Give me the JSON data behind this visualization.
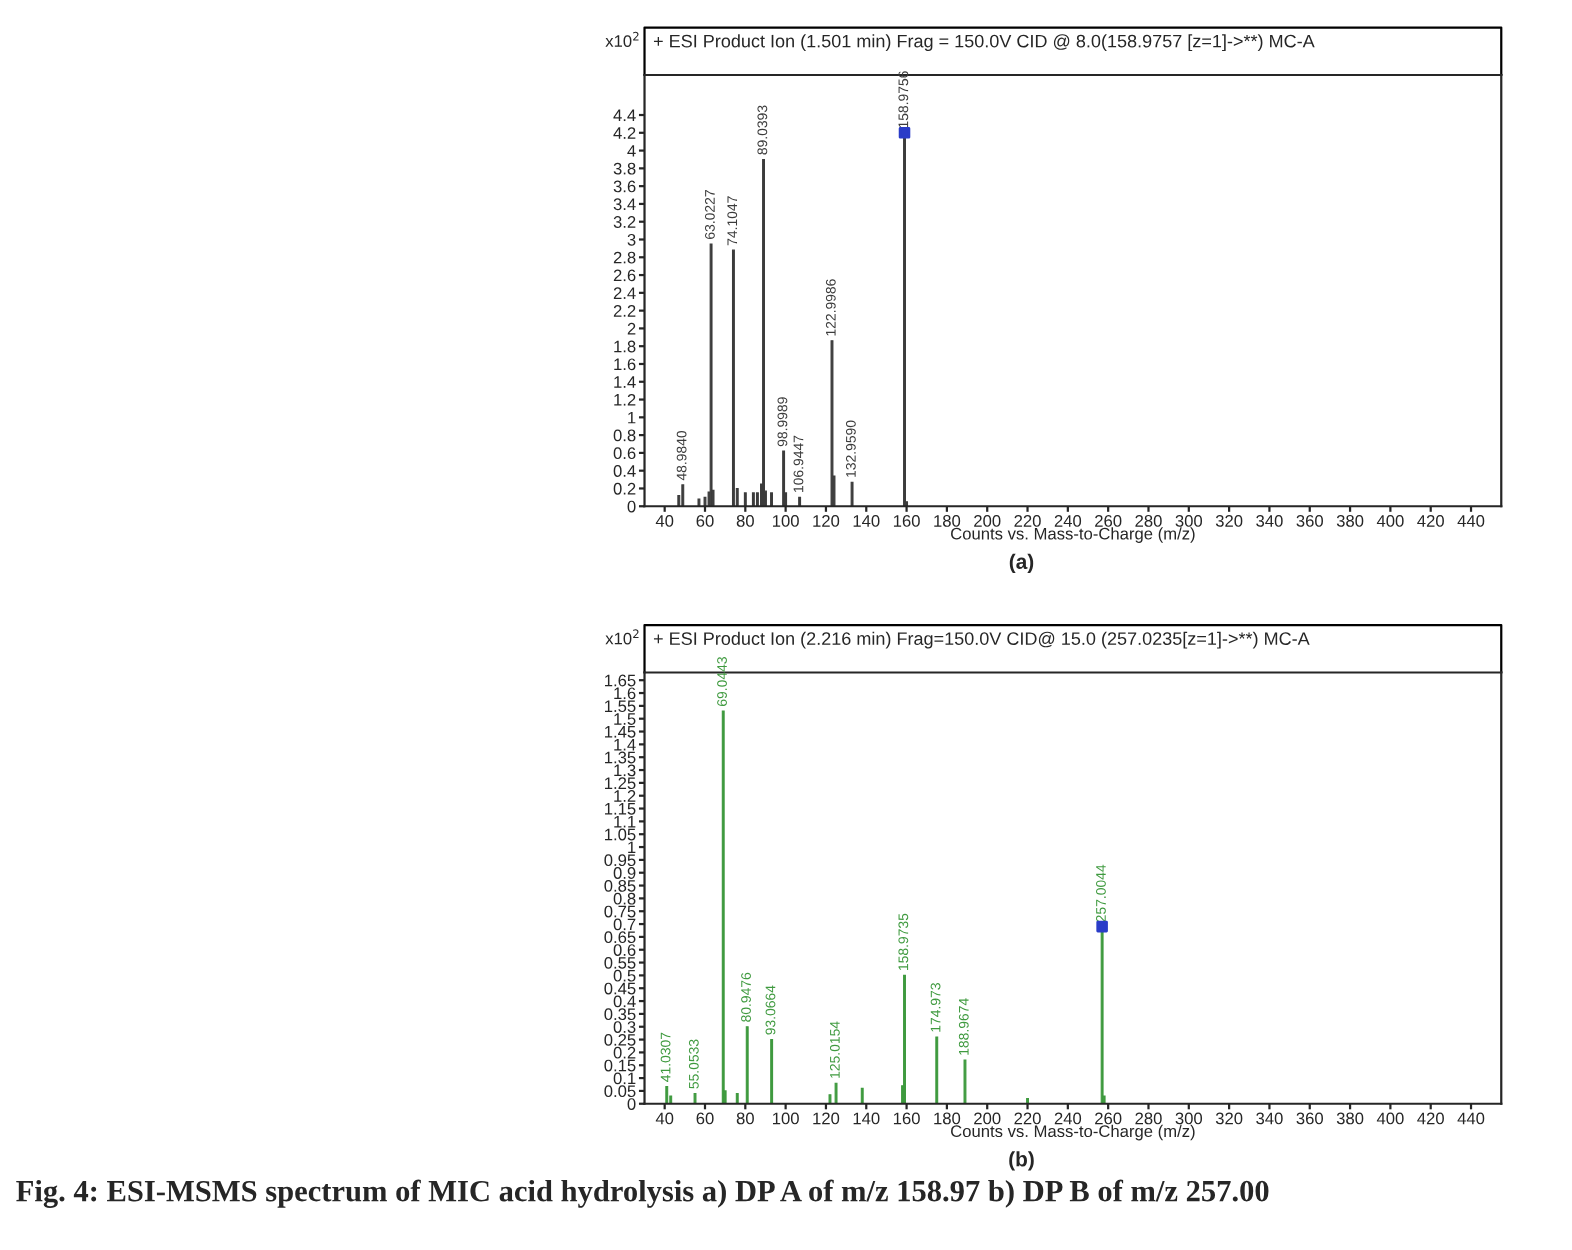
{
  "chart_data": [
    {
      "type": "bar",
      "title": "+ ESI Product Ion (1.501 min) Frag = 150.0V CID @ 8.0(158.9757 [z=1]->**) MC-A",
      "xlabel": "Counts vs. Mass-to-Charge (m/z)",
      "ylabel": "x10$^{2}$",
      "series": [
        {
          "color": "#3c3c3c",
          "x": [
            47,
            48.984,
            57,
            60,
            62,
            63.0227,
            64,
            74.1047,
            76,
            80,
            84,
            86,
            88,
            89.0393,
            90,
            93,
            98.9989,
            100,
            106.9447,
            122.9986,
            124,
            132.959,
            158.9756,
            160
          ],
          "values": [
            0.12,
            0.24,
            0.08,
            0.1,
            0.16,
            2.95,
            0.18,
            2.88,
            0.2,
            0.15,
            0.15,
            0.15,
            0.25,
            3.9,
            0.17,
            0.15,
            0.62,
            0.15,
            0.1,
            1.86,
            0.34,
            0.27,
            4.2,
            0.05
          ]
        },
        {
          "type": "scatter",
          "color": "#2a3cc8",
          "marker": "square",
          "x": [
            158.9756
          ],
          "values": [
            4.2
          ]
        }
      ],
      "xlim": [
        30,
        455
      ],
      "xticks": [
        40,
        60,
        80,
        100,
        120,
        140,
        160,
        180,
        200,
        220,
        240,
        260,
        280,
        300,
        320,
        340,
        360,
        380,
        400,
        420,
        440
      ],
      "ylim": [
        0,
        4.85
      ],
      "yticks": [
        0,
        0.2,
        0.4,
        0.6,
        0.8,
        1,
        1.2,
        1.4,
        1.6,
        1.8,
        2,
        2.2,
        2.4,
        2.6,
        2.8,
        3,
        3.2,
        3.4,
        3.6,
        3.8,
        4,
        4.2,
        4.4
      ],
      "grid": false,
      "legend": false,
      "annotations": [
        {
          "text": "48.9840",
          "x": 48.984,
          "y": 0.24
        },
        {
          "text": "63.0227",
          "x": 63.0227,
          "y": 2.95
        },
        {
          "text": "74.1047",
          "x": 74.1047,
          "y": 2.88
        },
        {
          "text": "89.0393",
          "x": 89.0393,
          "y": 3.9
        },
        {
          "text": "98.9989",
          "x": 98.9989,
          "y": 0.62
        },
        {
          "text": "106.9447",
          "x": 106.9447,
          "y": 0.1
        },
        {
          "text": "122.9986",
          "x": 122.9986,
          "y": 1.86
        },
        {
          "text": "132.9590",
          "x": 132.959,
          "y": 0.27
        },
        {
          "text": "158.9756",
          "x": 158.9756,
          "y": 4.2
        },
        "(a)"
      ]
    },
    {
      "type": "bar",
      "title": "+ ESI Product Ion (2.216 min) Frag=150.0V CID@ 15.0 (257.0235[z=1]->**) MC-A",
      "xlabel": "Counts vs. Mass-to-Charge (m/z)",
      "ylabel": "x10$^{2}$",
      "series": [
        {
          "color": "#3f9a3f",
          "x": [
            41.0307,
            43,
            55.0533,
            69.0443,
            70,
            76,
            80.9476,
            93.0664,
            122,
            125.0154,
            138,
            158,
            158.9735,
            174.973,
            188.9674,
            220,
            257.0044,
            258
          ],
          "values": [
            0.067,
            0.03,
            0.04,
            1.53,
            0.05,
            0.04,
            0.3,
            0.25,
            0.035,
            0.08,
            0.06,
            0.07,
            0.5,
            0.26,
            0.17,
            0.02,
            0.69,
            0.03
          ]
        },
        {
          "type": "scatter",
          "color": "#2a3cc8",
          "marker": "square",
          "x": [
            257.0044
          ],
          "values": [
            0.69
          ]
        }
      ],
      "xlim": [
        30,
        455
      ],
      "xticks": [
        40,
        60,
        80,
        100,
        120,
        140,
        160,
        180,
        200,
        220,
        240,
        260,
        280,
        300,
        320,
        340,
        360,
        380,
        400,
        420,
        440
      ],
      "ylim": [
        0,
        1.68
      ],
      "yticks": [
        0,
        0.05,
        0.1,
        0.15,
        0.2,
        0.25,
        0.3,
        0.35,
        0.4,
        0.45,
        0.5,
        0.55,
        0.6,
        0.65,
        0.7,
        0.75,
        0.8,
        0.85,
        0.9,
        0.95,
        1,
        1.05,
        1.1,
        1.15,
        1.2,
        1.25,
        1.3,
        1.35,
        1.4,
        1.45,
        1.5,
        1.55,
        1.6,
        1.65
      ],
      "grid": false,
      "legend": false,
      "annotations": [
        {
          "text": "41.0307",
          "x": 41.0307,
          "y": 0.067
        },
        {
          "text": "55.0533",
          "x": 55.0533,
          "y": 0.04
        },
        {
          "text": "69.0443",
          "x": 69.0443,
          "y": 1.53
        },
        {
          "text": "80.9476",
          "x": 80.9476,
          "y": 0.3
        },
        {
          "text": "93.0664",
          "x": 93.0664,
          "y": 0.25
        },
        {
          "text": "125.0154",
          "x": 125.0154,
          "y": 0.08
        },
        {
          "text": "158.9735",
          "x": 158.9735,
          "y": 0.5
        },
        {
          "text": "174.973",
          "x": 174.973,
          "y": 0.26
        },
        {
          "text": "188.9674",
          "x": 188.9674,
          "y": 0.17
        },
        {
          "text": "257.0044",
          "x": 257.0044,
          "y": 0.69
        },
        "(b)",
        "Fig. 4: ESI-MSMS spectrum of MIC acid hydrolysis a) DP A of m/z 158.97 b) DP B of m/z 257.00"
      ]
    }
  ]
}
